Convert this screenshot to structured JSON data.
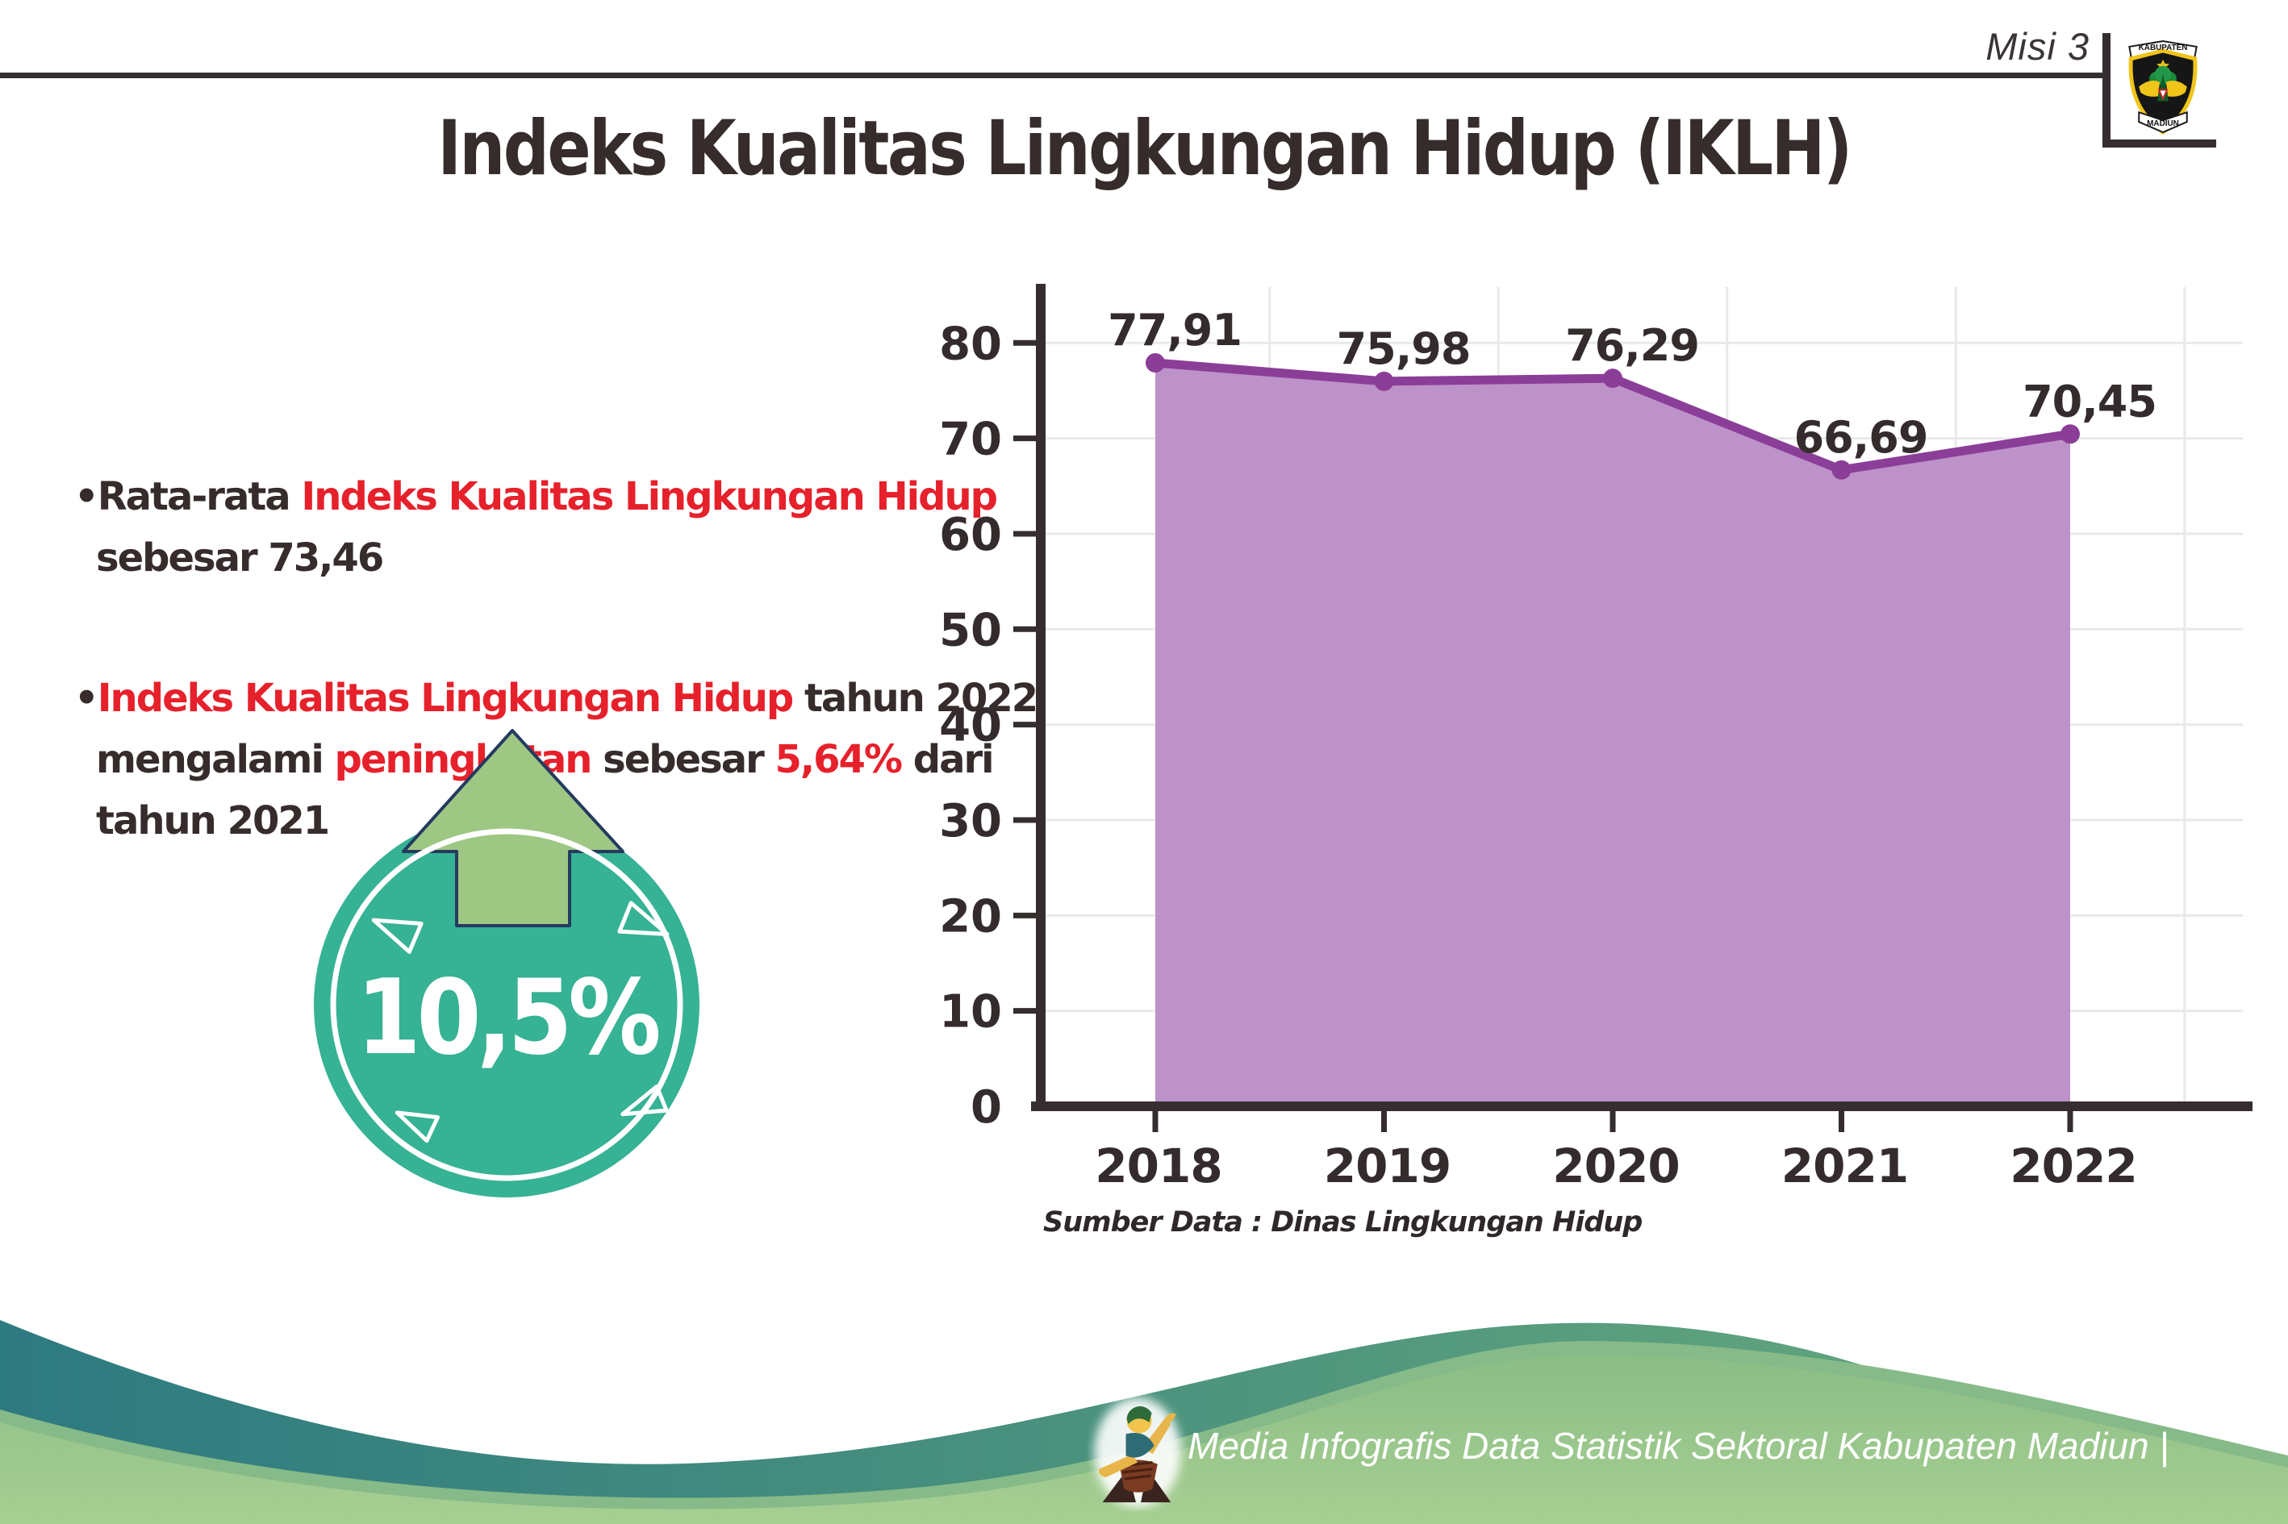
{
  "header": {
    "misi_label": "Misi 3",
    "logo": {
      "top_text": "KABUPATEN",
      "bottom_text": "MADIUN"
    }
  },
  "title": "Indeks Kualitas Lingkungan Hidup (IKLH)",
  "bullets": [
    {
      "lines": [
        [
          {
            "t": "Rata-rata ",
            "c": "dark"
          },
          {
            "t": "Indeks Kualitas Lingkungan Hidup",
            "c": "red"
          }
        ],
        [
          {
            "t": "sebesar 73,46",
            "c": "dark"
          }
        ]
      ]
    },
    {
      "lines": [
        [
          {
            "t": "Indeks Kualitas Lingkungan Hidup",
            "c": "red"
          },
          {
            "t": " tahun 2022",
            "c": "dark"
          }
        ],
        [
          {
            "t": "mengalami ",
            "c": "dark"
          },
          {
            "t": "peningkatan",
            "c": "red"
          },
          {
            "t": " sebesar ",
            "c": "dark"
          },
          {
            "t": "5,64%",
            "c": "red"
          },
          {
            "t": " dari",
            "c": "dark"
          }
        ],
        [
          {
            "t": "tahun 2021",
            "c": "dark"
          }
        ]
      ]
    }
  ],
  "badge": {
    "value": "10,5%",
    "circle_color": "#36b294",
    "arrow_color": "#9dc783",
    "arrow_outline": "#253a60"
  },
  "chart_data": {
    "type": "area",
    "title": "",
    "categories": [
      "2018",
      "2019",
      "2020",
      "2021",
      "2022"
    ],
    "values": [
      77.91,
      75.98,
      76.29,
      66.69,
      70.45
    ],
    "point_labels": [
      "77,91",
      "75,98",
      "76,29",
      "66,69",
      "70,45"
    ],
    "yticks": [
      0,
      10,
      20,
      30,
      40,
      50,
      60,
      70,
      80
    ],
    "ylim": [
      0,
      86
    ],
    "xlabel": "",
    "ylabel": "",
    "grid": true,
    "legend": "none",
    "line_color": "#8b3e97",
    "fill_color": "#bd92c9",
    "axis_color": "#362e2e",
    "grid_color": "#e9e9e9",
    "label_color": "#342c2c"
  },
  "source_note": "Sumber Data : Dinas Lingkungan Hidup",
  "footer": {
    "credit": "Media Infografis Data Statistik Sektoral Kabupaten Madiun |"
  }
}
